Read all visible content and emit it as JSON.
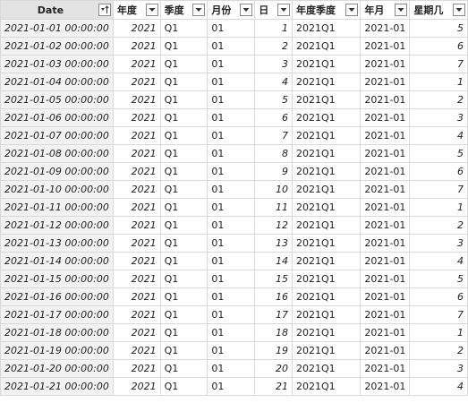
{
  "columns": [
    {
      "key": "date",
      "label": "Date",
      "icon": "sort-ascending-filter-icon"
    },
    {
      "key": "year",
      "label": "年度",
      "icon": "dropdown-arrow-icon"
    },
    {
      "key": "quarter",
      "label": "季度",
      "icon": "dropdown-arrow-icon"
    },
    {
      "key": "month",
      "label": "月份",
      "icon": "dropdown-arrow-icon"
    },
    {
      "key": "day",
      "label": "日",
      "icon": "dropdown-arrow-icon"
    },
    {
      "key": "year_quarter",
      "label": "年度季度",
      "icon": "dropdown-arrow-icon"
    },
    {
      "key": "year_month",
      "label": "年月",
      "icon": "dropdown-arrow-icon"
    },
    {
      "key": "weekday",
      "label": "星期几",
      "icon": "dropdown-arrow-icon"
    }
  ],
  "rows": [
    [
      "2021-01-01 00:00:00",
      "2021",
      "Q1",
      "01",
      "1",
      "2021Q1",
      "2021-01",
      "5"
    ],
    [
      "2021-01-02 00:00:00",
      "2021",
      "Q1",
      "01",
      "2",
      "2021Q1",
      "2021-01",
      "6"
    ],
    [
      "2021-01-03 00:00:00",
      "2021",
      "Q1",
      "01",
      "3",
      "2021Q1",
      "2021-01",
      "7"
    ],
    [
      "2021-01-04 00:00:00",
      "2021",
      "Q1",
      "01",
      "4",
      "2021Q1",
      "2021-01",
      "1"
    ],
    [
      "2021-01-05 00:00:00",
      "2021",
      "Q1",
      "01",
      "5",
      "2021Q1",
      "2021-01",
      "2"
    ],
    [
      "2021-01-06 00:00:00",
      "2021",
      "Q1",
      "01",
      "6",
      "2021Q1",
      "2021-01",
      "3"
    ],
    [
      "2021-01-07 00:00:00",
      "2021",
      "Q1",
      "01",
      "7",
      "2021Q1",
      "2021-01",
      "4"
    ],
    [
      "2021-01-08 00:00:00",
      "2021",
      "Q1",
      "01",
      "8",
      "2021Q1",
      "2021-01",
      "5"
    ],
    [
      "2021-01-09 00:00:00",
      "2021",
      "Q1",
      "01",
      "9",
      "2021Q1",
      "2021-01",
      "6"
    ],
    [
      "2021-01-10 00:00:00",
      "2021",
      "Q1",
      "01",
      "10",
      "2021Q1",
      "2021-01",
      "7"
    ],
    [
      "2021-01-11 00:00:00",
      "2021",
      "Q1",
      "01",
      "11",
      "2021Q1",
      "2021-01",
      "1"
    ],
    [
      "2021-01-12 00:00:00",
      "2021",
      "Q1",
      "01",
      "12",
      "2021Q1",
      "2021-01",
      "2"
    ],
    [
      "2021-01-13 00:00:00",
      "2021",
      "Q1",
      "01",
      "13",
      "2021Q1",
      "2021-01",
      "3"
    ],
    [
      "2021-01-14 00:00:00",
      "2021",
      "Q1",
      "01",
      "14",
      "2021Q1",
      "2021-01",
      "4"
    ],
    [
      "2021-01-15 00:00:00",
      "2021",
      "Q1",
      "01",
      "15",
      "2021Q1",
      "2021-01",
      "5"
    ],
    [
      "2021-01-16 00:00:00",
      "2021",
      "Q1",
      "01",
      "16",
      "2021Q1",
      "2021-01",
      "6"
    ],
    [
      "2021-01-17 00:00:00",
      "2021",
      "Q1",
      "01",
      "17",
      "2021Q1",
      "2021-01",
      "7"
    ],
    [
      "2021-01-18 00:00:00",
      "2021",
      "Q1",
      "01",
      "18",
      "2021Q1",
      "2021-01",
      "1"
    ],
    [
      "2021-01-19 00:00:00",
      "2021",
      "Q1",
      "01",
      "19",
      "2021Q1",
      "2021-01",
      "2"
    ],
    [
      "2021-01-20 00:00:00",
      "2021",
      "Q1",
      "01",
      "20",
      "2021Q1",
      "2021-01",
      "3"
    ],
    [
      "2021-01-21 00:00:00",
      "2021",
      "Q1",
      "01",
      "21",
      "2021Q1",
      "2021-01",
      "4"
    ]
  ],
  "colors": {
    "header_date_bg": "#e3e3e3",
    "date_column_bg": "#f2f2f2",
    "grid_line": "#d9d9d9"
  }
}
